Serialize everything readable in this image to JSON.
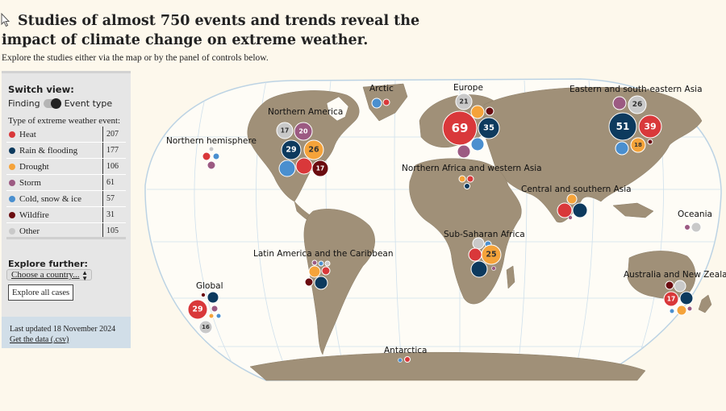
{
  "header": {
    "title": "Studies of almost 750 events and trends reveal the impact of climate change on extreme weather.",
    "subtitle": "Explore the studies either via the map or by the panel of controls below."
  },
  "panel": {
    "switch_view_label": "Switch view:",
    "toggle_left": "Finding",
    "toggle_right": "Event type",
    "type_title": "Type of extreme weather event:",
    "event_types": [
      {
        "label": "Heat",
        "count": "207",
        "color": "#d9383a"
      },
      {
        "label": "Rain & flooding",
        "count": "177",
        "color": "#0d3a5e"
      },
      {
        "label": "Drought",
        "count": "106",
        "color": "#f5a33a"
      },
      {
        "label": "Storm",
        "count": "61",
        "color": "#9c5a82"
      },
      {
        "label": "Cold, snow & ice",
        "count": "57",
        "color": "#4a8fcf"
      },
      {
        "label": "Wildfire",
        "count": "31",
        "color": "#6b0c10"
      },
      {
        "label": "Other",
        "count": "105",
        "color": "#c9c9c9"
      }
    ],
    "explore_label": "Explore further:",
    "country_select": "Choose a country...",
    "explore_all": "Explore all cases",
    "last_updated": "Last updated 18 November 2024",
    "get_data": "Get the data (.csv)"
  },
  "map": {
    "region_labels": {
      "arctic": "Arctic",
      "europe": "Europe",
      "east_asia": "Eastern and south-eastern Asia",
      "north_america": "Northern America",
      "northern_hemisphere": "Northern hemisphere",
      "n_africa": "Northern Africa and western Asia",
      "c_s_asia": "Central and southern Asia",
      "oceania": "Oceania",
      "latam": "Latin America and the Caribbean",
      "ss_africa": "Sub-Saharan Africa",
      "global": "Global",
      "australia": "Australia and New Zealand",
      "antarctica": "Antarctica"
    },
    "bubble_numbers": {
      "europe_heat": "69",
      "europe_rain": "35",
      "europe_other": "21",
      "asia_rain": "51",
      "asia_heat": "39",
      "asia_other": "26",
      "asia_drought": "18",
      "na_other": "17",
      "na_storm": "20",
      "na_rain": "29",
      "na_drought": "26",
      "na_wildfire": "17",
      "ssa_drought": "25",
      "global_heat": "29",
      "global_other": "16",
      "aus_heat": "17"
    }
  }
}
